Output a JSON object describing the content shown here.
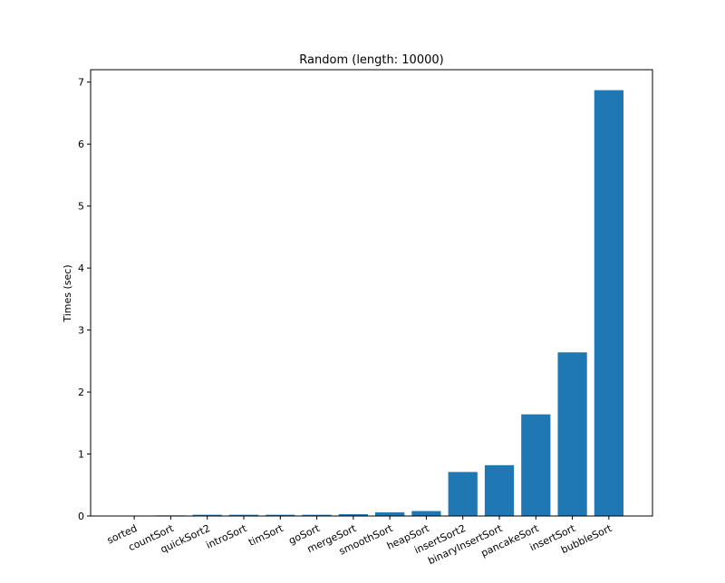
{
  "chart_data": {
    "type": "bar",
    "title": "Random (length: 10000)",
    "xlabel": "",
    "ylabel": "Times (sec)",
    "ylim": [
      0,
      7.2
    ],
    "yticks": [
      0,
      1,
      2,
      3,
      4,
      5,
      6,
      7
    ],
    "grid": false,
    "legend": "none",
    "bar_color": "#1f77b4",
    "categories": [
      "sorted",
      "countSort",
      "quickSort2",
      "introSort",
      "timSort",
      "goSort",
      "mergeSort",
      "smoothSort",
      "heapSort",
      "insertSort2",
      "binaryInsertSort",
      "pancakeSort",
      "insertSort",
      "bubbleSort"
    ],
    "values": [
      0.0,
      0.01,
      0.02,
      0.02,
      0.02,
      0.02,
      0.03,
      0.06,
      0.08,
      0.71,
      0.82,
      1.64,
      2.64,
      6.87
    ]
  }
}
